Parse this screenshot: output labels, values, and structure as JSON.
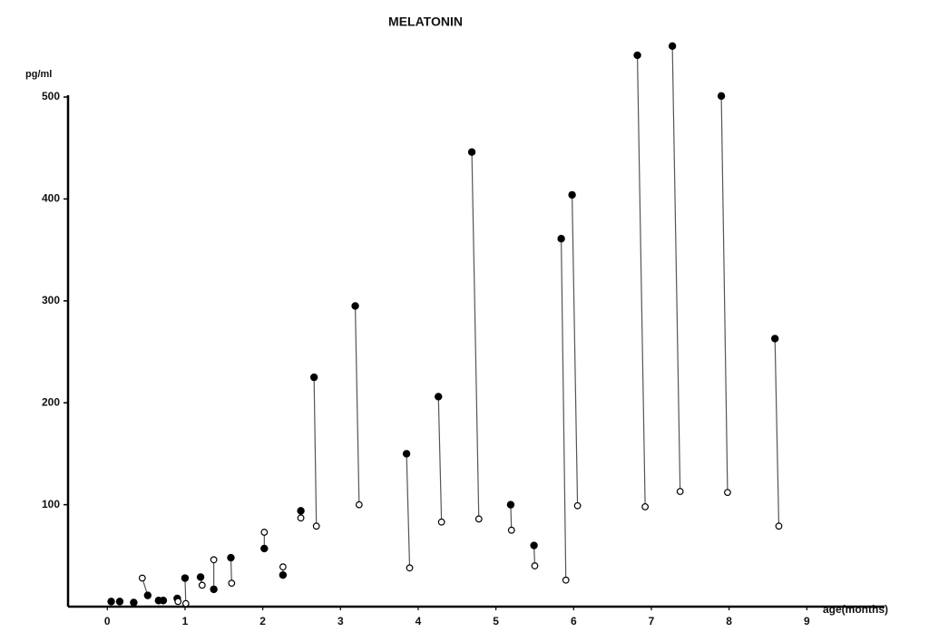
{
  "chart_data": {
    "type": "scatter",
    "title": "MELATONIN",
    "ylabel": "pg/ml",
    "xlabel": "age(months)",
    "xlim": [
      -0.33,
      10
    ],
    "ylim": [
      0,
      500
    ],
    "xticks": [
      0,
      1,
      2,
      3,
      4,
      5,
      6,
      7,
      8,
      9
    ],
    "yticks": [
      100,
      200,
      300,
      400,
      500
    ],
    "connect_pairs": true,
    "color": "#000000",
    "series": [
      {
        "marker": "filled",
        "x": [
          0.05,
          0.16,
          0.34,
          0.52,
          0.66,
          0.72,
          0.9,
          1.0,
          1.2,
          1.37,
          1.59,
          2.02,
          2.26,
          2.49,
          2.66,
          3.19,
          3.85,
          4.26,
          4.69,
          5.19,
          5.49,
          5.84,
          5.98,
          6.82,
          7.27,
          7.9,
          8.59
        ],
        "values": [
          5,
          5,
          4,
          11,
          6,
          6,
          8,
          28,
          29,
          17,
          48,
          57,
          31,
          94,
          225,
          295,
          150,
          206,
          446,
          100,
          60,
          361,
          404,
          541,
          550,
          501,
          263
        ]
      },
      {
        "marker": "open",
        "x": [
          null,
          null,
          null,
          0.45,
          null,
          null,
          0.91,
          1.01,
          1.22,
          1.37,
          1.6,
          2.02,
          2.26,
          2.49,
          2.69,
          3.24,
          3.89,
          4.3,
          4.78,
          5.2,
          5.5,
          5.9,
          6.05,
          6.92,
          7.37,
          7.98,
          8.64
        ],
        "values": [
          null,
          null,
          null,
          28,
          null,
          null,
          5,
          3,
          21,
          46,
          23,
          73,
          39,
          87,
          79,
          100,
          38,
          83,
          86,
          75,
          40,
          26,
          99,
          98,
          113,
          112,
          79
        ]
      }
    ]
  }
}
